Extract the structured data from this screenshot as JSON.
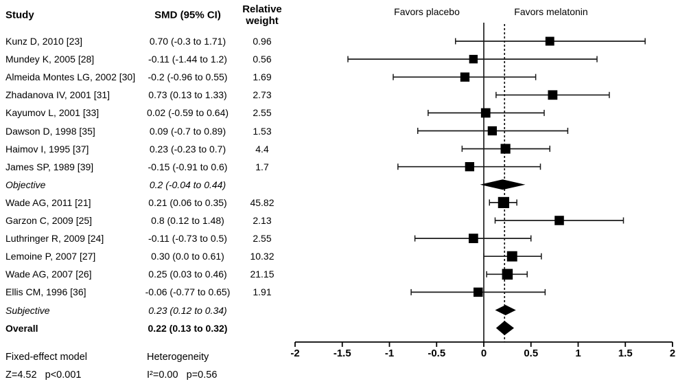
{
  "table": {
    "headers": {
      "study": "Study",
      "smd": "SMD (95% CI)",
      "weight": "Relative weight"
    }
  },
  "plot_labels": {
    "favors_left": "Favors placebo",
    "favors_right": "Favors melatonin"
  },
  "footer": {
    "model": "Fixed-effect model",
    "model_stats": "Z=4.52   p<0.001",
    "heterogeneity": "Heterogeneity",
    "heterogeneity_stats": "I²=0.00   p=0.56"
  },
  "chart_data": {
    "type": "scatter",
    "subtype": "forest-plot",
    "title": "",
    "xlabel": "",
    "xlim": [
      -2,
      2
    ],
    "x_ticks": [
      -2,
      -1.5,
      -1,
      -0.5,
      0,
      0.5,
      1,
      1.5,
      2
    ],
    "grid": false,
    "zero_line": 0,
    "overall_dashed_line": 0.22,
    "annotations": [
      "Favors placebo",
      "Favors melatonin"
    ],
    "rows": [
      {
        "study": "Kunz D, 2010 [23]",
        "smd_text": "0.70 (-0.3 to 1.71)",
        "weight_text": "0.96",
        "est": 0.7,
        "lo": -0.3,
        "hi": 1.71,
        "weight": 0.96,
        "kind": "study",
        "emph": null
      },
      {
        "study": "Mundey K, 2005 [28]",
        "smd_text": "-0.11 (-1.44 to 1.2)",
        "weight_text": "0.56",
        "est": -0.11,
        "lo": -1.44,
        "hi": 1.2,
        "weight": 0.56,
        "kind": "study",
        "emph": null
      },
      {
        "study": "Almeida Montes LG, 2002 [30]",
        "smd_text": "-0.2 (-0.96 to 0.55)",
        "weight_text": "1.69",
        "est": -0.2,
        "lo": -0.96,
        "hi": 0.55,
        "weight": 1.69,
        "kind": "study",
        "emph": null
      },
      {
        "study": "Zhadanova IV, 2001 [31]",
        "smd_text": "0.73 (0.13 to 1.33)",
        "weight_text": "2.73",
        "est": 0.73,
        "lo": 0.13,
        "hi": 1.33,
        "weight": 2.73,
        "kind": "study",
        "emph": null
      },
      {
        "study": "Kayumov L, 2001 [33]",
        "smd_text": "0.02 (-0.59 to 0.64)",
        "weight_text": "2.55",
        "est": 0.02,
        "lo": -0.59,
        "hi": 0.64,
        "weight": 2.55,
        "kind": "study",
        "emph": null
      },
      {
        "study": "Dawson D, 1998 [35]",
        "smd_text": "0.09 (-0.7 to 0.89)",
        "weight_text": "1.53",
        "est": 0.09,
        "lo": -0.7,
        "hi": 0.89,
        "weight": 1.53,
        "kind": "study",
        "emph": null
      },
      {
        "study": "Haimov I, 1995 [37]",
        "smd_text": "0.23 (-0.23 to 0.7)",
        "weight_text": "4.4",
        "est": 0.23,
        "lo": -0.23,
        "hi": 0.7,
        "weight": 4.4,
        "kind": "study",
        "emph": null
      },
      {
        "study": "James SP, 1989 [39]",
        "smd_text": "-0.15 (-0.91 to 0.6)",
        "weight_text": "1.7",
        "est": -0.15,
        "lo": -0.91,
        "hi": 0.6,
        "weight": 1.7,
        "kind": "study",
        "emph": null
      },
      {
        "study": "Objective",
        "smd_text": "0.2 (-0.04 to 0.44)",
        "weight_text": "",
        "est": 0.2,
        "lo": -0.04,
        "hi": 0.44,
        "weight": null,
        "kind": "summary",
        "emph": "italic"
      },
      {
        "study": "Wade AG, 2011 [21]",
        "smd_text": "0.21 (0.06 to 0.35)",
        "weight_text": "45.82",
        "est": 0.21,
        "lo": 0.06,
        "hi": 0.35,
        "weight": 45.82,
        "kind": "study",
        "emph": null
      },
      {
        "study": "Garzon C, 2009 [25]",
        "smd_text": "0.8 (0.12 to 1.48)",
        "weight_text": "2.13",
        "est": 0.8,
        "lo": 0.12,
        "hi": 1.48,
        "weight": 2.13,
        "kind": "study",
        "emph": null
      },
      {
        "study": "Luthringer R, 2009 [24]",
        "smd_text": "-0.11 (-0.73 to 0.5)",
        "weight_text": "2.55",
        "est": -0.11,
        "lo": -0.73,
        "hi": 0.5,
        "weight": 2.55,
        "kind": "study",
        "emph": null
      },
      {
        "study": "Lemoine P, 2007 [27]",
        "smd_text": "0.30 (0.0 to 0.61)",
        "weight_text": "10.32",
        "est": 0.3,
        "lo": 0.0,
        "hi": 0.61,
        "weight": 10.32,
        "kind": "study",
        "emph": null
      },
      {
        "study": "Wade AG, 2007 [26]",
        "smd_text": "0.25 (0.03 to 0.46)",
        "weight_text": "21.15",
        "est": 0.25,
        "lo": 0.03,
        "hi": 0.46,
        "weight": 21.15,
        "kind": "study",
        "emph": null
      },
      {
        "study": "Ellis CM, 1996 [36]",
        "smd_text": "-0.06 (-0.77 to 0.65)",
        "weight_text": "1.91",
        "est": -0.06,
        "lo": -0.77,
        "hi": 0.65,
        "weight": 1.91,
        "kind": "study",
        "emph": null
      },
      {
        "study": "Subjective",
        "smd_text": "0.23 (0.12 to 0.34)",
        "weight_text": "",
        "est": 0.23,
        "lo": 0.12,
        "hi": 0.34,
        "weight": null,
        "kind": "summary",
        "emph": "italic"
      },
      {
        "study": "Overall",
        "smd_text": "0.22 (0.13 to 0.32)",
        "weight_text": "",
        "est": 0.22,
        "lo": 0.13,
        "hi": 0.32,
        "weight": null,
        "kind": "overall",
        "emph": "bold"
      }
    ],
    "colors": {
      "marker": "#000000",
      "line": "#1a1a1a",
      "axis": "#000000"
    }
  }
}
